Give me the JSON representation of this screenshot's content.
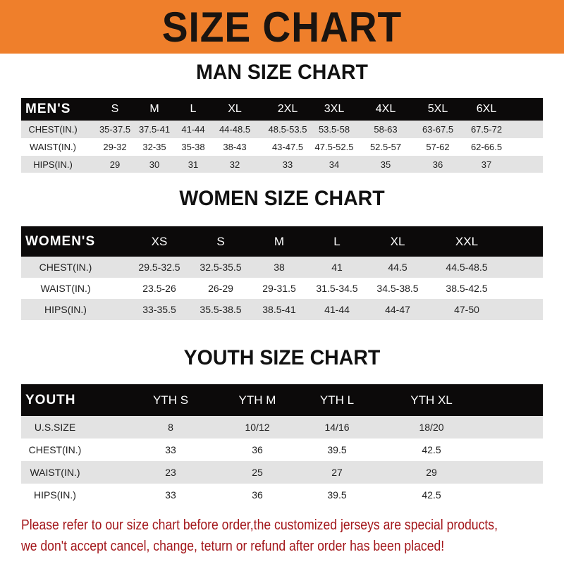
{
  "banner": {
    "title": "SIZE CHART",
    "color": "#ef7f2b"
  },
  "tables": [
    {
      "title": "MAN SIZE CHART",
      "header": "MEN'S",
      "sizes": [
        "S",
        "M",
        "L",
        "XL",
        "2XL",
        "3XL",
        "4XL",
        "5XL",
        "6XL"
      ],
      "rows": [
        {
          "label": "CHEST(IN.)",
          "values": [
            "35-37.5",
            "37.5-41",
            "41-44",
            "44-48.5",
            "48.5-53.5",
            "53.5-58",
            "58-63",
            "63-67.5",
            "67.5-72"
          ]
        },
        {
          "label": "WAIST(IN.)",
          "values": [
            "29-32",
            "32-35",
            "35-38",
            "38-43",
            "43-47.5",
            "47.5-52.5",
            "52.5-57",
            "57-62",
            "62-66.5"
          ]
        },
        {
          "label": "HIPS(IN.)",
          "values": [
            "29",
            "30",
            "31",
            "32",
            "33",
            "34",
            "35",
            "36",
            "37"
          ]
        }
      ]
    },
    {
      "title": "WOMEN SIZE CHART",
      "header": "WOMEN'S",
      "sizes": [
        "XS",
        "S",
        "M",
        "L",
        "XL",
        "XXL"
      ],
      "rows": [
        {
          "label": "CHEST(IN.)",
          "values": [
            "29.5-32.5",
            "32.5-35.5",
            "38",
            "41",
            "44.5",
            "44.5-48.5"
          ]
        },
        {
          "label": "WAIST(IN.)",
          "values": [
            "23.5-26",
            "26-29",
            "29-31.5",
            "31.5-34.5",
            "34.5-38.5",
            "38.5-42.5"
          ]
        },
        {
          "label": "HIPS(IN.)",
          "values": [
            "33-35.5",
            "35.5-38.5",
            "38.5-41",
            "41-44",
            "44-47",
            "47-50"
          ]
        }
      ]
    },
    {
      "title": "YOUTH SIZE CHART",
      "header": "YOUTH",
      "sizes": [
        "YTH S",
        "YTH M",
        "YTH L",
        "YTH XL"
      ],
      "rows": [
        {
          "label": "U.S.SIZE",
          "values": [
            "8",
            "10/12",
            "14/16",
            "18/20"
          ]
        },
        {
          "label": "CHEST(IN.)",
          "values": [
            "33",
            "36",
            "39.5",
            "42.5"
          ]
        },
        {
          "label": "WAIST(IN.)",
          "values": [
            "23",
            "25",
            "27",
            "29"
          ]
        },
        {
          "label": "HIPS(IN.)",
          "values": [
            "33",
            "36",
            "39.5",
            "42.5"
          ]
        }
      ]
    }
  ],
  "note": {
    "line1": "Please refer to our size chart before order,the customized jerseys are special products,",
    "line2": "we don't accept cancel, change, teturn or refund after order has been placed!",
    "color": "#a3161a"
  }
}
